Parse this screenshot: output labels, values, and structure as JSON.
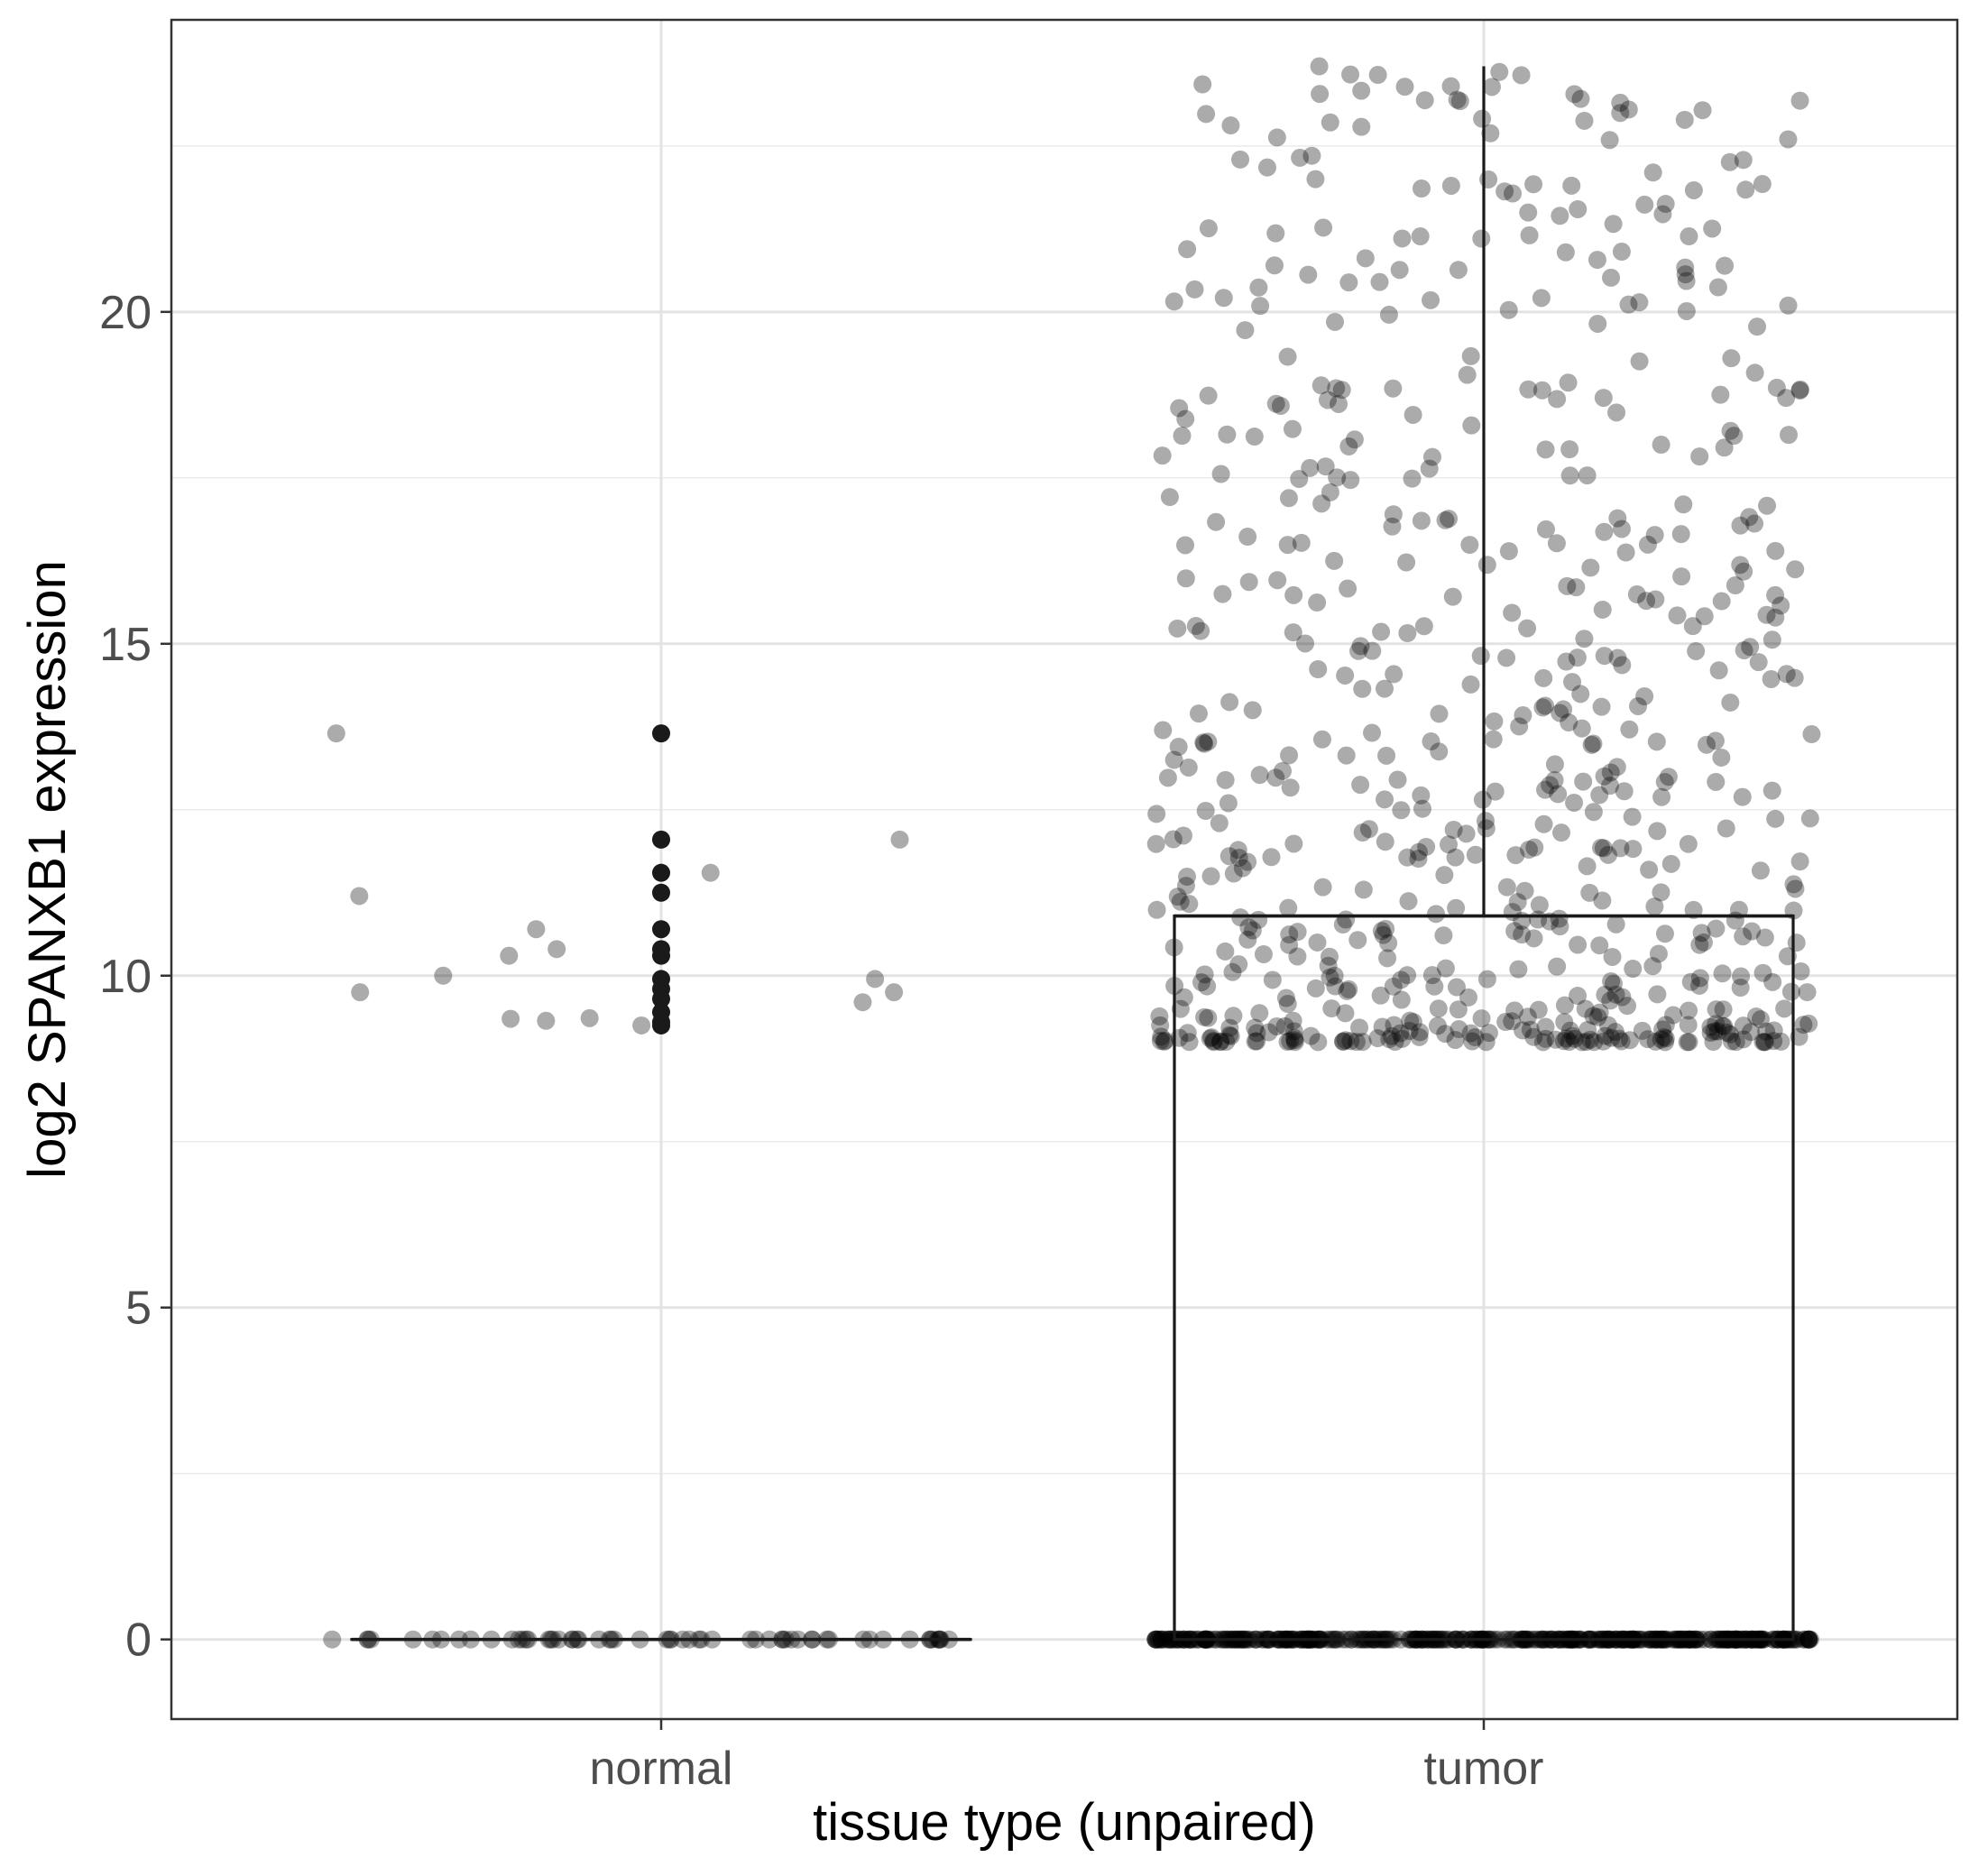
{
  "chart_data": {
    "type": "box",
    "xlabel": "tissue type (unpaired)",
    "ylabel": "log2 SPANXB1 expression",
    "ylim": [
      -1.2,
      24.4
    ],
    "y_ticks": [
      0,
      5,
      10,
      15,
      20
    ],
    "y_tick_labels": [
      "0",
      "5",
      "10",
      "15",
      "20"
    ],
    "y_minor_ticks": [
      2.5,
      7.5,
      12.5,
      17.5,
      22.5
    ],
    "categories": [
      "normal",
      "tumor"
    ],
    "grid": true,
    "boxes": [
      {
        "category": "normal",
        "min": 0,
        "q1": 0,
        "median": 0,
        "q3": 0,
        "max": 0,
        "outliers": [
          13.65,
          12.05,
          11.55,
          11.25,
          10.7,
          10.4,
          10.3,
          9.95,
          9.8,
          9.65,
          9.45,
          9.3,
          9.25
        ],
        "jitter_points": [
          {
            "x": -0.395,
            "y": 13.65
          },
          {
            "x": -0.367,
            "y": 11.2
          },
          {
            "x": -0.366,
            "y": 9.75
          },
          {
            "x": -0.265,
            "y": 10.0
          },
          {
            "x": -0.185,
            "y": 10.3
          },
          {
            "x": -0.152,
            "y": 10.7
          },
          {
            "x": -0.127,
            "y": 10.4
          },
          {
            "x": -0.183,
            "y": 9.35
          },
          {
            "x": -0.14,
            "y": 9.32
          },
          {
            "x": -0.087,
            "y": 9.36
          },
          {
            "x": -0.024,
            "y": 9.25
          },
          {
            "x": 0.06,
            "y": 11.55
          },
          {
            "x": 0.29,
            "y": 12.05
          },
          {
            "x": 0.26,
            "y": 9.95
          },
          {
            "x": 0.245,
            "y": 9.6
          },
          {
            "x": 0.283,
            "y": 9.75
          }
        ]
      },
      {
        "category": "tumor",
        "min": 0,
        "q1": 0,
        "median": 10.9,
        "q3": 10.9,
        "max": 23.7,
        "scatter_range": [
          9.0,
          23.7
        ]
      }
    ]
  }
}
